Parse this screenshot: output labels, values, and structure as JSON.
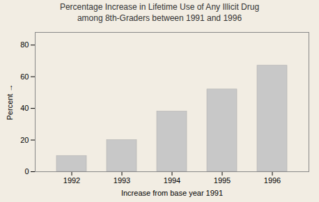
{
  "chart_data": {
    "type": "bar",
    "title": "Percentage Increase in Lifetime Use of Any Illicit Drug\namong 8th-Graders between 1991 and 1996",
    "xlabel": "Increase from base year 1991",
    "ylabel": "Percent",
    "categories": [
      "1992",
      "1993",
      "1994",
      "1995",
      "1996"
    ],
    "values": [
      10,
      20,
      38,
      52,
      67
    ],
    "color": "#c8c8c8",
    "ylim": [
      0,
      88
    ],
    "yticks": [
      0,
      20,
      40,
      60,
      80
    ],
    "grid": false
  }
}
